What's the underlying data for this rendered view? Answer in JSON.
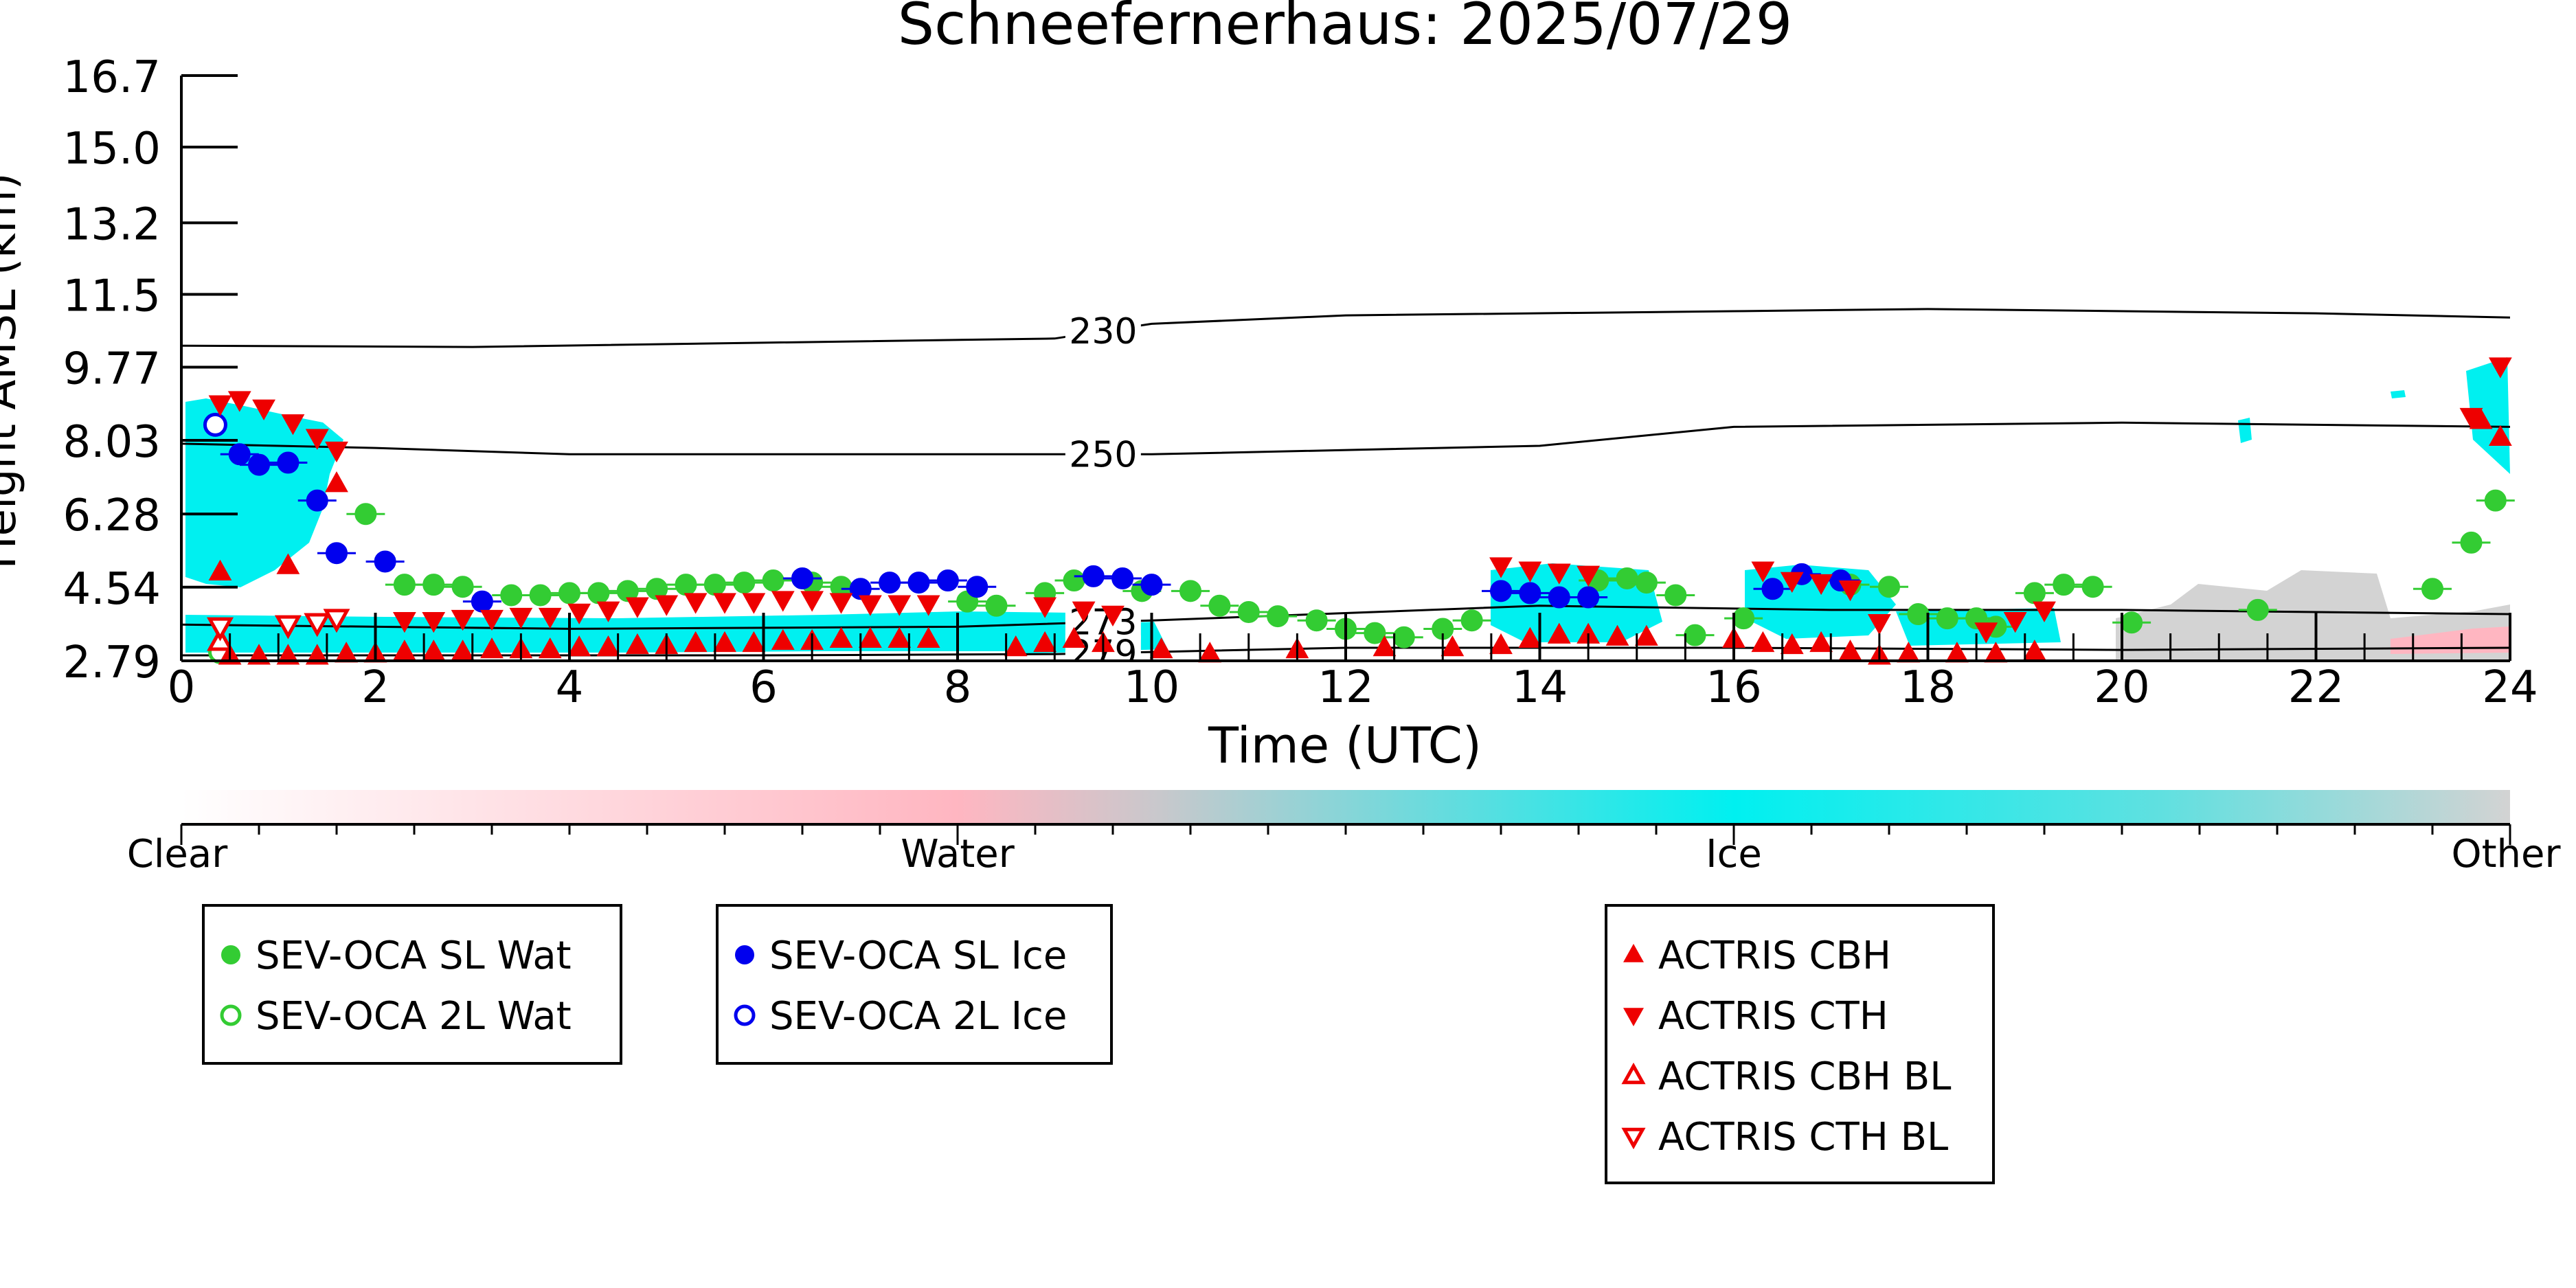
{
  "chart_data": {
    "type": "scatter",
    "title": "Schneefernerhaus: 2025/07/29",
    "xlabel": "Time (UTC)",
    "ylabel": "Height AMSL (km)",
    "xlim": [
      0,
      24
    ],
    "ylim": [
      2.79,
      16.7
    ],
    "x_ticks": [
      "0",
      "2",
      "4",
      "6",
      "8",
      "10",
      "12",
      "14",
      "16",
      "18",
      "20",
      "22",
      "24"
    ],
    "y_ticks": [
      "2.79",
      "4.54",
      "6.28",
      "8.03",
      "9.77",
      "11.5",
      "13.2",
      "15.0",
      "16.7"
    ],
    "colorbar": {
      "labels": [
        "Clear",
        "Water",
        "Ice",
        "Other"
      ],
      "colors": {
        "clear": "#ffffff",
        "water": "#ffb6c1",
        "ice": "#00f0f0",
        "other": "#d3d3d3"
      }
    },
    "contours": [
      {
        "label": "230",
        "points": [
          [
            0,
            10.28
          ],
          [
            3,
            10.25
          ],
          [
            6,
            10.35
          ],
          [
            9,
            10.45
          ],
          [
            10,
            10.8
          ],
          [
            12,
            11.0
          ],
          [
            16,
            11.1
          ],
          [
            18,
            11.15
          ],
          [
            22,
            11.05
          ],
          [
            24,
            10.95
          ]
        ]
      },
      {
        "label": "250",
        "points": [
          [
            0,
            7.95
          ],
          [
            2,
            7.85
          ],
          [
            4,
            7.7
          ],
          [
            7,
            7.7
          ],
          [
            10,
            7.7
          ],
          [
            14,
            7.9
          ],
          [
            16,
            8.35
          ],
          [
            20,
            8.45
          ],
          [
            22,
            8.4
          ],
          [
            24,
            8.35
          ]
        ]
      },
      {
        "label": "273",
        "points": [
          [
            0,
            3.65
          ],
          [
            4,
            3.55
          ],
          [
            8,
            3.6
          ],
          [
            10,
            3.75
          ],
          [
            14,
            4.1
          ],
          [
            17,
            4.0
          ],
          [
            20,
            4.0
          ],
          [
            24,
            3.9
          ]
        ]
      },
      {
        "label": "279",
        "points": [
          [
            0,
            2.92
          ],
          [
            6,
            2.92
          ],
          [
            9,
            2.95
          ],
          [
            12,
            3.1
          ],
          [
            16,
            3.1
          ],
          [
            20,
            3.05
          ],
          [
            24,
            3.1
          ]
        ]
      }
    ],
    "series": [
      {
        "name": "SEV-OCA SL Wat",
        "marker": "circle",
        "fill": true,
        "color": "#33cc33",
        "points": [
          [
            1.9,
            6.28
          ],
          [
            2.3,
            4.6
          ],
          [
            2.6,
            4.6
          ],
          [
            2.9,
            4.55
          ],
          [
            3.4,
            4.35
          ],
          [
            3.7,
            4.35
          ],
          [
            4.0,
            4.4
          ],
          [
            4.3,
            4.4
          ],
          [
            4.6,
            4.45
          ],
          [
            4.9,
            4.5
          ],
          [
            5.2,
            4.6
          ],
          [
            5.5,
            4.6
          ],
          [
            5.8,
            4.65
          ],
          [
            6.1,
            4.7
          ],
          [
            6.5,
            4.65
          ],
          [
            6.8,
            4.55
          ],
          [
            8.1,
            4.2
          ],
          [
            8.4,
            4.1
          ],
          [
            8.9,
            4.4
          ],
          [
            9.2,
            4.7
          ],
          [
            9.9,
            4.45
          ],
          [
            10.4,
            4.45
          ],
          [
            10.7,
            4.1
          ],
          [
            11.0,
            3.95
          ],
          [
            11.3,
            3.85
          ],
          [
            11.7,
            3.75
          ],
          [
            12.0,
            3.55
          ],
          [
            12.3,
            3.45
          ],
          [
            12.6,
            3.35
          ],
          [
            13.0,
            3.55
          ],
          [
            13.3,
            3.75
          ],
          [
            14.6,
            4.7
          ],
          [
            14.9,
            4.75
          ],
          [
            15.1,
            4.65
          ],
          [
            15.4,
            4.35
          ],
          [
            15.6,
            3.4
          ],
          [
            16.1,
            3.8
          ],
          [
            17.2,
            4.6
          ],
          [
            17.6,
            4.55
          ],
          [
            17.9,
            3.9
          ],
          [
            18.2,
            3.8
          ],
          [
            18.5,
            3.8
          ],
          [
            18.7,
            3.6
          ],
          [
            19.1,
            4.4
          ],
          [
            19.4,
            4.6
          ],
          [
            19.7,
            4.55
          ],
          [
            20.1,
            3.7
          ],
          [
            21.4,
            4.0
          ],
          [
            23.2,
            4.5
          ],
          [
            23.6,
            5.6
          ],
          [
            23.85,
            6.6
          ]
        ]
      },
      {
        "name": "SEV-OCA 2L Wat",
        "marker": "circle",
        "fill": false,
        "color": "#33cc33",
        "points": [
          [
            0.4,
            3.0
          ]
        ]
      },
      {
        "name": "SEV-OCA SL Ice",
        "marker": "circle",
        "fill": true,
        "color": "#0000ee",
        "points": [
          [
            0.6,
            7.7
          ],
          [
            0.8,
            7.45
          ],
          [
            1.1,
            7.5
          ],
          [
            1.4,
            6.6
          ],
          [
            1.6,
            5.35
          ],
          [
            2.1,
            5.15
          ],
          [
            3.1,
            4.2
          ],
          [
            6.4,
            4.75
          ],
          [
            7.0,
            4.5
          ],
          [
            7.3,
            4.65
          ],
          [
            7.6,
            4.65
          ],
          [
            7.9,
            4.7
          ],
          [
            8.2,
            4.55
          ],
          [
            9.4,
            4.8
          ],
          [
            9.7,
            4.75
          ],
          [
            10.0,
            4.6
          ],
          [
            13.6,
            4.45
          ],
          [
            13.9,
            4.4
          ],
          [
            14.2,
            4.3
          ],
          [
            14.5,
            4.3
          ],
          [
            16.4,
            4.5
          ],
          [
            16.7,
            4.85
          ],
          [
            17.1,
            4.7
          ]
        ]
      },
      {
        "name": "SEV-OCA 2L Ice",
        "marker": "circle",
        "fill": false,
        "color": "#0000ee",
        "points": [
          [
            0.35,
            8.4
          ]
        ]
      },
      {
        "name": "ACTRIS CBH",
        "marker": "triangle-up",
        "fill": true,
        "color": "#ee0000",
        "points": [
          [
            0.4,
            4.9
          ],
          [
            1.1,
            5.05
          ],
          [
            1.6,
            7.0
          ],
          [
            0.5,
            2.9
          ],
          [
            0.8,
            2.9
          ],
          [
            1.1,
            2.9
          ],
          [
            1.4,
            2.9
          ],
          [
            1.7,
            2.95
          ],
          [
            2.0,
            2.95
          ],
          [
            2.3,
            3.0
          ],
          [
            2.6,
            3.0
          ],
          [
            2.9,
            3.0
          ],
          [
            3.2,
            3.05
          ],
          [
            3.5,
            3.05
          ],
          [
            3.8,
            3.05
          ],
          [
            4.1,
            3.1
          ],
          [
            4.4,
            3.1
          ],
          [
            4.7,
            3.15
          ],
          [
            5.0,
            3.15
          ],
          [
            5.3,
            3.2
          ],
          [
            5.6,
            3.2
          ],
          [
            5.9,
            3.2
          ],
          [
            6.2,
            3.25
          ],
          [
            6.5,
            3.25
          ],
          [
            6.8,
            3.3
          ],
          [
            7.1,
            3.3
          ],
          [
            7.4,
            3.3
          ],
          [
            7.7,
            3.3
          ],
          [
            8.6,
            3.1
          ],
          [
            8.9,
            3.2
          ],
          [
            9.2,
            3.3
          ],
          [
            9.5,
            3.2
          ],
          [
            10.1,
            3.05
          ],
          [
            10.6,
            2.95
          ],
          [
            11.5,
            3.05
          ],
          [
            12.4,
            3.1
          ],
          [
            13.1,
            3.1
          ],
          [
            13.6,
            3.15
          ],
          [
            13.9,
            3.3
          ],
          [
            14.2,
            3.4
          ],
          [
            14.5,
            3.4
          ],
          [
            14.8,
            3.35
          ],
          [
            15.1,
            3.35
          ],
          [
            16.0,
            3.3
          ],
          [
            16.3,
            3.2
          ],
          [
            16.6,
            3.15
          ],
          [
            16.9,
            3.2
          ],
          [
            17.2,
            3.0
          ],
          [
            17.5,
            2.9
          ],
          [
            17.8,
            2.95
          ],
          [
            18.3,
            2.95
          ],
          [
            18.7,
            2.95
          ],
          [
            19.1,
            3.0
          ],
          [
            23.7,
            8.5
          ],
          [
            23.9,
            8.1
          ]
        ]
      },
      {
        "name": "ACTRIS CTH",
        "marker": "triangle-down",
        "fill": true,
        "color": "#ee0000",
        "points": [
          [
            0.4,
            8.9
          ],
          [
            0.6,
            9.0
          ],
          [
            0.85,
            8.8
          ],
          [
            1.15,
            8.45
          ],
          [
            1.4,
            8.1
          ],
          [
            1.6,
            7.8
          ],
          [
            2.3,
            3.75
          ],
          [
            2.6,
            3.75
          ],
          [
            2.9,
            3.8
          ],
          [
            3.2,
            3.8
          ],
          [
            3.5,
            3.85
          ],
          [
            3.8,
            3.85
          ],
          [
            4.1,
            3.95
          ],
          [
            4.4,
            4.0
          ],
          [
            4.7,
            4.1
          ],
          [
            5.0,
            4.15
          ],
          [
            5.3,
            4.2
          ],
          [
            5.6,
            4.2
          ],
          [
            5.9,
            4.2
          ],
          [
            6.2,
            4.25
          ],
          [
            6.5,
            4.25
          ],
          [
            6.8,
            4.2
          ],
          [
            7.1,
            4.15
          ],
          [
            7.4,
            4.15
          ],
          [
            7.7,
            4.15
          ],
          [
            8.9,
            4.1
          ],
          [
            9.3,
            4.0
          ],
          [
            9.6,
            3.9
          ],
          [
            13.6,
            5.05
          ],
          [
            13.9,
            4.95
          ],
          [
            14.2,
            4.9
          ],
          [
            14.5,
            4.85
          ],
          [
            16.3,
            4.95
          ],
          [
            16.6,
            4.7
          ],
          [
            16.9,
            4.65
          ],
          [
            17.2,
            4.5
          ],
          [
            17.5,
            3.7
          ],
          [
            18.6,
            3.5
          ],
          [
            18.9,
            3.75
          ],
          [
            19.2,
            4.0
          ],
          [
            23.6,
            8.6
          ],
          [
            23.9,
            9.8
          ]
        ]
      },
      {
        "name": "ACTRIS CBH BL",
        "marker": "triangle-up",
        "fill": false,
        "color": "#ee0000",
        "points": [
          [
            0.4,
            3.25
          ]
        ]
      },
      {
        "name": "ACTRIS CTH BL",
        "marker": "triangle-down",
        "fill": false,
        "color": "#ee0000",
        "points": [
          [
            0.4,
            3.6
          ],
          [
            1.1,
            3.65
          ],
          [
            1.4,
            3.7
          ],
          [
            1.6,
            3.8
          ]
        ]
      }
    ],
    "legend": [
      {
        "entries": [
          "SEV-OCA SL Wat",
          "SEV-OCA 2L Wat"
        ]
      },
      {
        "entries": [
          "SEV-OCA SL Ice",
          "SEV-OCA 2L Ice"
        ]
      },
      {
        "entries": [
          "ACTRIS CBH",
          "ACTRIS CTH",
          "ACTRIS CBH BL",
          "ACTRIS CTH BL"
        ]
      }
    ]
  }
}
